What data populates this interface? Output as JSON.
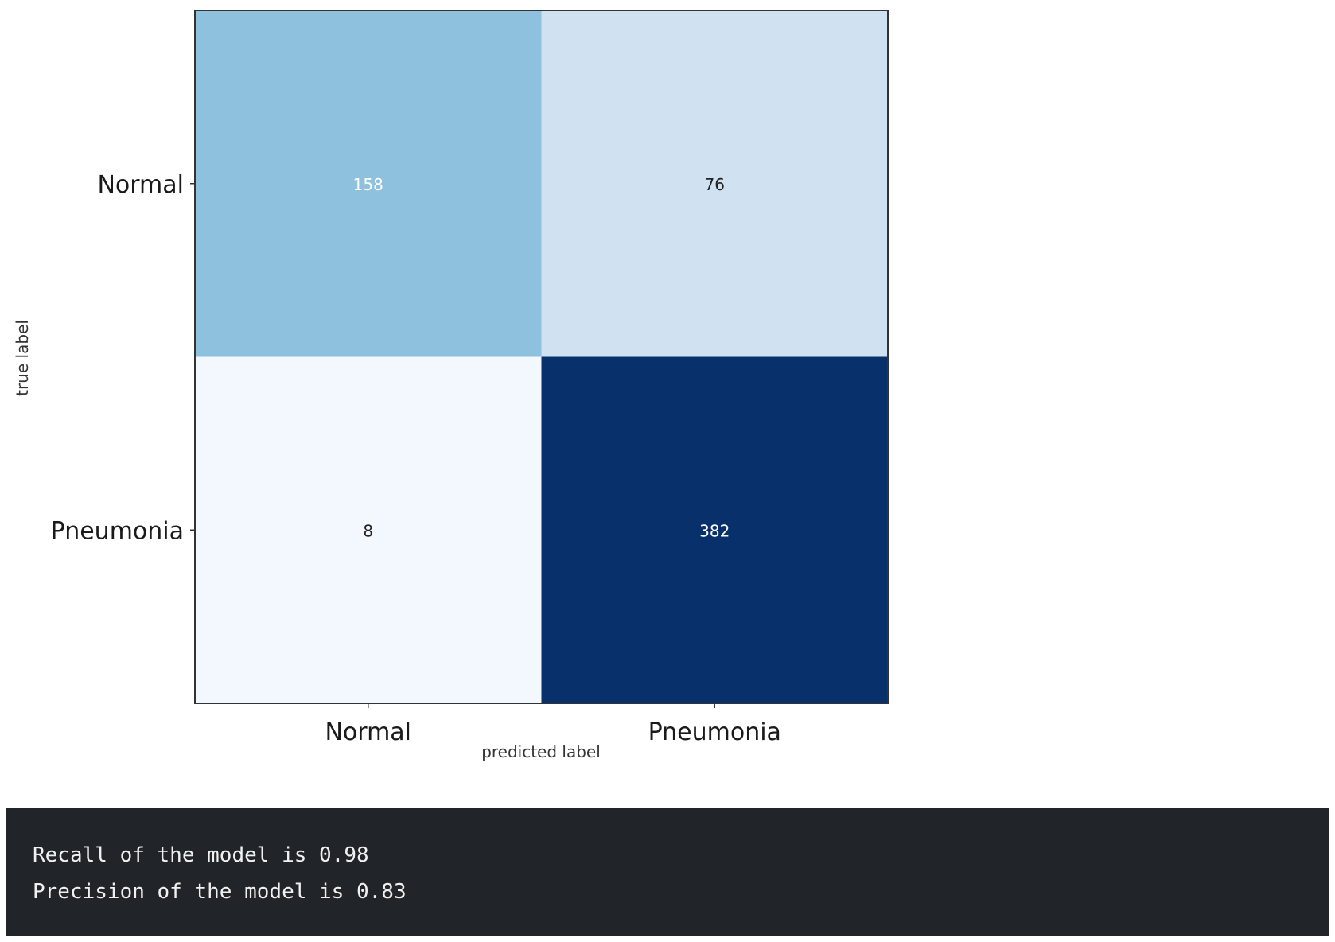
{
  "chart_data": {
    "type": "heatmap",
    "title": "",
    "xlabel": "predicted label",
    "ylabel": "true label",
    "x_categories": [
      "Normal",
      "Pneumonia"
    ],
    "y_categories": [
      "Normal",
      "Pneumonia"
    ],
    "values": [
      [
        158,
        76
      ],
      [
        8,
        382
      ]
    ],
    "colormap": "Blues",
    "value_range": [
      0,
      382
    ],
    "grid": false,
    "legend": "none"
  },
  "output": {
    "lines": [
      "Recall of the model is 0.98",
      "Precision of the model is 0.83"
    ],
    "background": "#212428",
    "text_color": "#f1f1f1"
  }
}
